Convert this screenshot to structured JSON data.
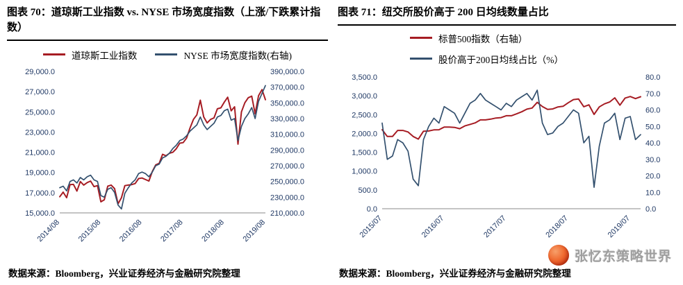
{
  "watermark": {
    "text": "张忆东策略世界",
    "logo_color": "#e2491f"
  },
  "chart_data": [
    {
      "type": "line",
      "title": "图表 70：道琼斯工业指数 vs. NYSE 市场宽度指数（上涨/下跌累计指数）",
      "source": "数据来源：Bloomberg，兴业证券经济与金融研究院整理",
      "grid": false,
      "legend_position": "top-center-row",
      "x_tick_labels": [
        "2014/08",
        "2015/08",
        "2016/08",
        "2017/08",
        "2018/08",
        "2019/08"
      ],
      "x_tick_indices": [
        0,
        12,
        24,
        36,
        48,
        60
      ],
      "left_axis": {
        "min": 15000,
        "max": 29000,
        "step": 2000,
        "ticks": [
          15000,
          17000,
          19000,
          21000,
          23000,
          25000,
          27000,
          29000
        ]
      },
      "right_axis": {
        "min": 210000,
        "max": 390000,
        "step": 20000,
        "ticks": [
          210000,
          230000,
          250000,
          270000,
          290000,
          310000,
          330000,
          350000,
          370000,
          390000
        ]
      },
      "series": [
        {
          "name": "道琼斯工业指数",
          "axis": "left",
          "color": "#a61c23",
          "values": [
            16600,
            17050,
            16500,
            17800,
            17820,
            17160,
            18100,
            17750,
            18000,
            18150,
            17600,
            17700,
            16100,
            16300,
            17650,
            17750,
            17400,
            15900,
            16500,
            17700,
            17750,
            17800,
            17900,
            18400,
            18450,
            18300,
            18150,
            19100,
            19750,
            19900,
            20800,
            20650,
            20900,
            21000,
            21350,
            21900,
            21950,
            22400,
            23400,
            24250,
            24700,
            26150,
            24500,
            23900,
            24250,
            24400,
            25300,
            25400,
            25960,
            26450,
            25100,
            25500,
            21800,
            25000,
            25900,
            26400,
            26550,
            24800,
            26600,
            27200,
            26200
          ]
        },
        {
          "name": "NYSE 市场宽度指数(右轴)",
          "axis": "right",
          "color": "#33506e",
          "values": [
            242000,
            244000,
            238000,
            250000,
            252000,
            248000,
            255000,
            252000,
            256000,
            258000,
            252000,
            250000,
            232000,
            230000,
            240000,
            242000,
            236000,
            220000,
            215000,
            235000,
            242000,
            248000,
            252000,
            260000,
            262000,
            260000,
            256000,
            262000,
            270000,
            272000,
            280000,
            282000,
            286000,
            292000,
            296000,
            302000,
            304000,
            308000,
            314000,
            318000,
            322000,
            332000,
            322000,
            316000,
            320000,
            324000,
            332000,
            334000,
            340000,
            342000,
            328000,
            330000,
            302000,
            320000,
            330000,
            336000,
            344000,
            330000,
            352000,
            362000,
            372000
          ]
        }
      ]
    },
    {
      "type": "line",
      "title": "图表 71：纽交所股价高于 200 日均线数量占比",
      "source": "数据来源：Bloomberg，兴业证券经济与金融研究院整理",
      "grid": false,
      "legend_position": "top-left-column",
      "x_tick_labels": [
        "2015/07",
        "2016/07",
        "2017/07",
        "2018/07",
        "2019/07"
      ],
      "x_tick_indices": [
        0,
        12,
        24,
        36,
        48
      ],
      "left_axis": {
        "min": 0,
        "max": 3500,
        "step": 500,
        "ticks": [
          0,
          500,
          1000,
          1500,
          2000,
          2500,
          3000,
          3500
        ]
      },
      "right_axis": {
        "min": 0,
        "max": 80,
        "step": 10,
        "ticks": [
          0,
          10,
          20,
          30,
          40,
          50,
          60,
          70,
          80
        ]
      },
      "series": [
        {
          "name": "标普500指数（右轴）",
          "axis": "left",
          "color": "#a61c23",
          "values": [
            2100,
            1920,
            1920,
            2080,
            2080,
            2040,
            1920,
            1850,
            2060,
            2065,
            2095,
            2099,
            2170,
            2170,
            2160,
            2125,
            2200,
            2240,
            2280,
            2360,
            2360,
            2380,
            2410,
            2420,
            2470,
            2470,
            2520,
            2575,
            2645,
            2675,
            2825,
            2715,
            2640,
            2650,
            2705,
            2720,
            2815,
            2900,
            2915,
            2710,
            2760,
            2505,
            2705,
            2785,
            2835,
            2945,
            2750,
            2940,
            2980,
            2925,
            2975
          ]
        },
        {
          "name": "股价高于200日均线占比（%）",
          "axis": "right",
          "color": "#33506e",
          "values": [
            52,
            30,
            32,
            42,
            40,
            35,
            18,
            14,
            42,
            50,
            55,
            52,
            62,
            60,
            58,
            52,
            58,
            64,
            66,
            70,
            66,
            64,
            62,
            60,
            64,
            62,
            66,
            68,
            70,
            66,
            72,
            52,
            45,
            46,
            50,
            52,
            56,
            60,
            58,
            40,
            44,
            13,
            38,
            52,
            54,
            58,
            42,
            55,
            56,
            42,
            45
          ]
        }
      ]
    }
  ]
}
